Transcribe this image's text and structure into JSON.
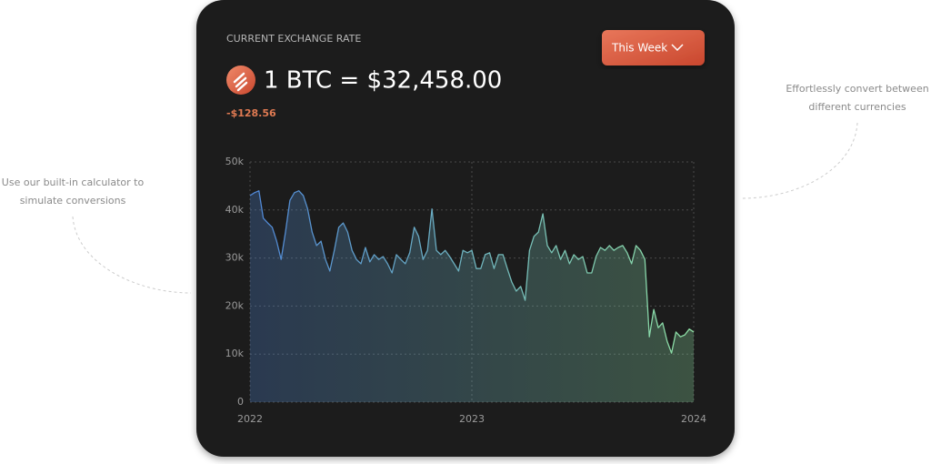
{
  "card": {
    "eyebrow": "CURRENT EXCHANGE RATE",
    "rate": "1 BTC = $32,458.00",
    "change": "-$128.56",
    "period_button": "This Week"
  },
  "captions": {
    "left": [
      "Use our built-in calculator to",
      "simulate conversions"
    ],
    "right": [
      "Effortlessly convert between",
      "different currencies"
    ]
  },
  "chart_data": {
    "type": "line",
    "x": [
      2022,
      2022.02,
      2022.04,
      2022.06,
      2022.08,
      2022.1,
      2022.12,
      2022.14,
      2022.16,
      2022.18,
      2022.2,
      2022.22,
      2022.24,
      2022.26,
      2022.28,
      2022.3,
      2022.32,
      2022.34,
      2022.36,
      2022.38,
      2022.4,
      2022.42,
      2022.44,
      2022.46,
      2022.48,
      2022.5,
      2022.52,
      2022.54,
      2022.56,
      2022.58,
      2022.6,
      2022.62,
      2022.64,
      2022.66,
      2022.68,
      2022.7,
      2022.72,
      2022.74,
      2022.76,
      2022.78,
      2022.8,
      2022.82,
      2022.84,
      2022.86,
      2022.88,
      2022.9,
      2022.92,
      2022.94,
      2022.96,
      2022.98,
      2023,
      2023.02,
      2023.04,
      2023.06,
      2023.08,
      2023.1,
      2023.12,
      2023.14,
      2023.16,
      2023.18,
      2023.2,
      2023.22,
      2023.24,
      2023.26,
      2023.28,
      2023.3,
      2023.32,
      2023.34,
      2023.36,
      2023.38,
      2023.4,
      2023.42,
      2023.44,
      2023.46,
      2023.48,
      2023.5,
      2023.52,
      2023.54,
      2023.56,
      2023.58,
      2023.6,
      2023.62,
      2023.64,
      2023.66,
      2023.68,
      2023.7,
      2023.72,
      2023.74,
      2023.76,
      2023.78,
      2023.8,
      2023.82,
      2023.84,
      2023.86,
      2023.88,
      2023.9,
      2023.92,
      2023.94,
      2023.96,
      2023.98,
      2024
    ],
    "values": [
      43000,
      43600,
      44000,
      38300,
      37300,
      36400,
      33500,
      29700,
      35400,
      42000,
      43600,
      44000,
      43000,
      40200,
      35400,
      32600,
      33500,
      29700,
      27300,
      31600,
      36400,
      37300,
      35400,
      31600,
      29700,
      28800,
      32200,
      29200,
      30700,
      29700,
      30300,
      28800,
      26900,
      30700,
      29700,
      28800,
      31100,
      36400,
      34500,
      29700,
      31600,
      40200,
      31600,
      30700,
      31600,
      30300,
      28800,
      27300,
      31600,
      31100,
      31600,
      27800,
      27800,
      30700,
      31100,
      27800,
      30700,
      30700,
      27800,
      25000,
      23100,
      24100,
      21200,
      31600,
      34500,
      35400,
      39200,
      32600,
      31100,
      32600,
      29700,
      31600,
      28800,
      30700,
      29700,
      30300,
      26900,
      26900,
      30300,
      32200,
      31600,
      32600,
      31600,
      32200,
      32600,
      31100,
      28800,
      32600,
      31600,
      29700,
      13600,
      19300,
      15500,
      16500,
      12700,
      10200,
      14600,
      13600,
      14000,
      15200,
      14600
    ],
    "line_gradient": [
      "#4f86d6",
      "#8ee0a4"
    ],
    "xlim": [
      2022,
      2024
    ],
    "xticks": [
      2022,
      2023,
      2024
    ],
    "ylim": [
      0,
      50000
    ],
    "yticks": [
      0,
      {
        "value": 10000,
        "label": "10k"
      },
      {
        "value": 20000,
        "label": "20k"
      },
      {
        "value": 30000,
        "label": "30k"
      },
      {
        "value": 40000,
        "label": "40k"
      },
      {
        "value": 50000,
        "label": "50k"
      }
    ],
    "grid": true
  }
}
